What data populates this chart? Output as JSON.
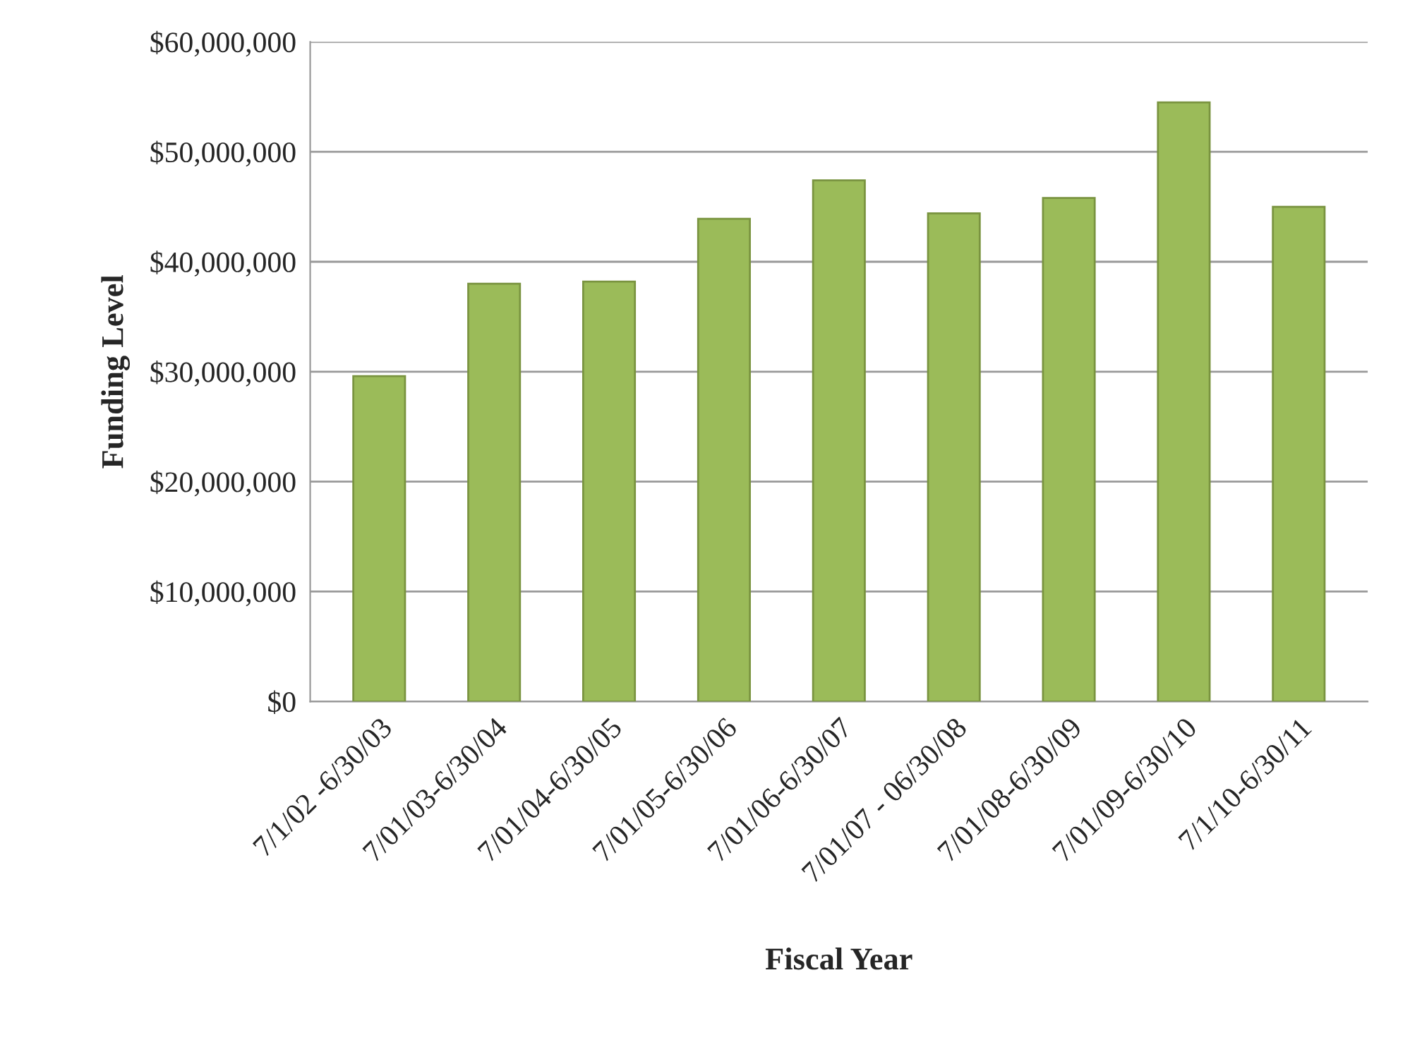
{
  "chart_data": {
    "type": "bar",
    "xlabel": "Fiscal Year",
    "ylabel": "Funding Level",
    "categories": [
      "7/1/02 -6/30/03",
      "7/01/03-6/30/04",
      "7/01/04-6/30/05",
      "7/01/05-6/30/06",
      "7/01/06-6/30/07",
      "7/01/07 - 06/30/08",
      "7/01/08-6/30/09",
      "7/01/09-6/30/10",
      "7/1/10-6/30/11"
    ],
    "values": [
      29600000,
      38000000,
      38200000,
      43900000,
      47400000,
      44400000,
      45800000,
      54500000,
      45000000
    ],
    "color": "#9bbb59",
    "ylim": [
      0,
      60000000
    ],
    "yticks": [
      {
        "value": 0,
        "label": "$0"
      },
      {
        "value": 10000000,
        "label": "$10,000,000"
      },
      {
        "value": 20000000,
        "label": "$20,000,000"
      },
      {
        "value": 30000000,
        "label": "$30,000,000"
      },
      {
        "value": 40000000,
        "label": "$40,000,000"
      },
      {
        "value": 50000000,
        "label": "$50,000,000"
      },
      {
        "value": 60000000,
        "label": "$60,000,000"
      }
    ],
    "grid": "y",
    "legend": false
  }
}
